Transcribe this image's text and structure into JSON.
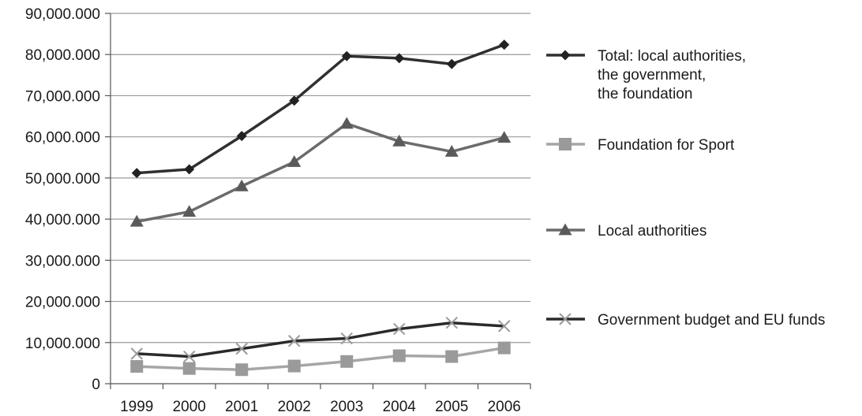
{
  "chart_data": {
    "type": "line",
    "title": "",
    "xlabel": "",
    "ylabel": "",
    "categories": [
      "1999",
      "2000",
      "2001",
      "2002",
      "2003",
      "2004",
      "2005",
      "2006"
    ],
    "ylim": [
      0,
      90000000
    ],
    "yticks": [
      0,
      10000000,
      20000000,
      30000000,
      40000000,
      50000000,
      60000000,
      70000000,
      80000000,
      90000000
    ],
    "ytick_labels": [
      "0",
      "10,000.000",
      "20,000.000",
      "30,000.000",
      "40,000.000",
      "50,000.000",
      "60,000.000",
      "70,000.000",
      "80,000.000",
      "90,000.000"
    ],
    "grid": true,
    "legend_position": "right",
    "series": [
      {
        "name_lines": [
          "Total: local authorities,",
          "the government,",
          "the foundation"
        ],
        "values": [
          51200000,
          52100000,
          60200000,
          68800000,
          79600000,
          79100000,
          77700000,
          82400000
        ],
        "line_color": "#303030",
        "marker": "diamond",
        "marker_color": "#222222"
      },
      {
        "name_lines": [
          "Foundation for Sport"
        ],
        "values": [
          4200000,
          3700000,
          3400000,
          4300000,
          5400000,
          6800000,
          6600000,
          8700000
        ],
        "line_color": "#a6a6a6",
        "marker": "square",
        "marker_color": "#9a9a9a"
      },
      {
        "name_lines": [
          "Local authorities"
        ],
        "values": [
          39400000,
          41800000,
          48000000,
          53900000,
          63200000,
          58900000,
          56400000,
          59800000
        ],
        "line_color": "#6b6b6b",
        "marker": "triangle",
        "marker_color": "#5a5a5a"
      },
      {
        "name_lines": [
          "Government budget and EU funds"
        ],
        "values": [
          7300000,
          6600000,
          8500000,
          10400000,
          11000000,
          13300000,
          14800000,
          14000000
        ],
        "line_color": "#2a2a2a",
        "marker": "x",
        "marker_color": "#9a9a9a"
      }
    ]
  }
}
